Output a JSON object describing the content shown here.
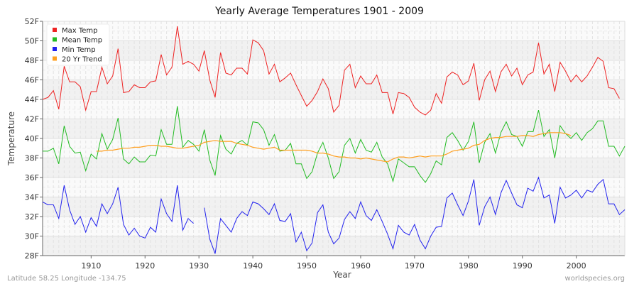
{
  "chart_data": {
    "type": "line",
    "title": "Yearly Average Temperatures 1901 - 2009",
    "xlabel": "Year",
    "ylabel": "Temperature",
    "xlim": [
      1901,
      2009
    ],
    "ylim": [
      28,
      52
    ],
    "x_ticks": [
      1910,
      1920,
      1930,
      1940,
      1950,
      1960,
      1970,
      1980,
      1990,
      2000
    ],
    "y_ticks": [
      "28F",
      "30F",
      "32F",
      "34F",
      "36F",
      "38F",
      "40F",
      "42F",
      "44F",
      "46F",
      "48F",
      "50F",
      "52F"
    ],
    "grid": true,
    "legend_position": "top-left",
    "series": [
      {
        "name": "Max Temp",
        "color": "#ee2222",
        "start_year": 1901,
        "values": [
          44.0,
          44.2,
          44.9,
          43.0,
          47.4,
          45.8,
          45.8,
          45.3,
          42.9,
          44.8,
          44.8,
          47.3,
          45.6,
          46.4,
          49.2,
          44.7,
          44.8,
          45.5,
          45.2,
          45.2,
          45.8,
          45.9,
          48.6,
          46.5,
          47.3,
          51.5,
          47.6,
          47.9,
          47.6,
          46.9,
          49.0,
          46.0,
          44.2,
          48.8,
          46.7,
          46.5,
          47.2,
          47.2,
          46.6,
          50.1,
          49.8,
          49.0,
          46.6,
          47.6,
          45.8,
          46.2,
          46.7,
          45.5,
          44.4,
          43.3,
          43.9,
          44.8,
          46.1,
          45.1,
          42.7,
          43.4,
          47.0,
          47.6,
          45.2,
          46.4,
          45.6,
          45.6,
          46.5,
          44.7,
          44.7,
          42.5,
          44.7,
          44.6,
          44.2,
          43.2,
          42.7,
          42.4,
          42.9,
          44.6,
          43.6,
          46.3,
          46.8,
          46.5,
          45.5,
          45.9,
          47.7,
          43.9,
          46.0,
          46.9,
          44.8,
          46.8,
          47.6,
          46.4,
          47.2,
          45.5,
          46.5,
          46.8,
          49.8,
          46.6,
          47.6,
          44.8,
          47.8,
          46.9,
          45.8,
          46.5,
          45.8,
          46.4,
          47.3,
          48.3,
          47.9,
          45.2,
          45.1,
          44.1,
          null
        ]
      },
      {
        "name": "Mean Temp",
        "color": "#22bb22",
        "start_year": 1901,
        "values": [
          38.7,
          38.7,
          39.0,
          37.4,
          41.3,
          39.2,
          38.5,
          38.6,
          36.7,
          38.4,
          37.9,
          40.5,
          38.9,
          39.9,
          42.1,
          37.9,
          37.4,
          38.1,
          37.6,
          37.6,
          38.3,
          38.2,
          40.9,
          39.4,
          39.4,
          43.3,
          39.1,
          39.8,
          39.4,
          38.7,
          40.9,
          37.8,
          36.2,
          40.3,
          38.9,
          38.4,
          39.5,
          39.8,
          39.3,
          41.7,
          41.6,
          40.9,
          39.3,
          40.4,
          38.7,
          38.8,
          39.5,
          37.4,
          37.4,
          35.9,
          36.6,
          38.5,
          39.6,
          38.0,
          35.9,
          36.6,
          39.3,
          40.0,
          38.5,
          39.9,
          38.8,
          38.6,
          39.6,
          38.1,
          37.4,
          35.6,
          37.9,
          37.5,
          37.1,
          37.1,
          36.2,
          35.5,
          36.4,
          37.7,
          37.3,
          40.1,
          40.6,
          39.8,
          38.8,
          39.7,
          41.7,
          37.5,
          39.6,
          40.5,
          38.5,
          40.6,
          41.7,
          40.4,
          40.2,
          39.2,
          40.7,
          40.7,
          42.9,
          40.2,
          40.9,
          38.0,
          41.3,
          40.5,
          40.0,
          40.6,
          39.8,
          40.6,
          41.0,
          41.8,
          41.8,
          39.2,
          39.2,
          38.2,
          39.2
        ]
      },
      {
        "name": "Min Temp",
        "color": "#2222ee",
        "start_year": 1901,
        "values": [
          33.5,
          33.2,
          33.2,
          31.8,
          35.2,
          32.7,
          31.2,
          32.0,
          30.4,
          31.9,
          31.0,
          33.3,
          32.3,
          33.3,
          35.0,
          31.2,
          30.1,
          30.8,
          30.0,
          29.8,
          30.9,
          30.4,
          33.8,
          32.3,
          31.5,
          35.2,
          30.6,
          31.8,
          31.3,
          null,
          32.9,
          29.7,
          28.2,
          31.8,
          31.1,
          30.4,
          31.8,
          32.5,
          32.1,
          33.5,
          33.3,
          32.8,
          32.2,
          33.3,
          31.6,
          31.5,
          32.3,
          29.4,
          30.4,
          28.5,
          29.3,
          32.4,
          33.2,
          30.4,
          29.2,
          29.8,
          31.7,
          32.5,
          31.8,
          33.5,
          32.1,
          31.6,
          32.7,
          31.5,
          30.2,
          28.7,
          31.1,
          30.4,
          30.1,
          31.2,
          29.6,
          28.7,
          30.0,
          30.9,
          31.0,
          33.9,
          34.4,
          33.2,
          32.1,
          33.6,
          35.8,
          31.1,
          33.0,
          34.0,
          32.2,
          34.4,
          35.7,
          34.4,
          33.2,
          32.9,
          34.9,
          34.6,
          36.0,
          33.9,
          34.2,
          31.3,
          35.0,
          33.9,
          34.2,
          34.7,
          33.9,
          34.7,
          34.5,
          35.3,
          35.8,
          33.3,
          33.3,
          32.2,
          32.7
        ]
      },
      {
        "name": "20 Yr Trend",
        "color": "#ffa020",
        "start_year": 1911,
        "values": [
          38.7,
          38.7,
          38.8,
          38.8,
          38.9,
          39.0,
          39.0,
          39.1,
          39.1,
          39.2,
          39.3,
          39.3,
          39.2,
          39.2,
          39.1,
          39.0,
          39.0,
          39.1,
          39.2,
          39.3,
          39.6,
          39.7,
          39.8,
          39.7,
          39.7,
          39.7,
          39.5,
          39.4,
          39.3,
          39.1,
          39.0,
          38.9,
          39.0,
          39.1,
          38.8,
          38.8,
          38.8,
          38.8,
          38.8,
          38.8,
          38.7,
          38.5,
          38.5,
          38.4,
          38.2,
          38.1,
          38.1,
          38.0,
          38.0,
          37.9,
          38.0,
          37.9,
          37.8,
          37.7,
          37.6,
          37.9,
          38.1,
          38.1,
          38.0,
          38.1,
          38.2,
          38.1,
          38.2,
          38.2,
          38.2,
          38.4,
          38.7,
          38.8,
          38.9,
          39.0,
          39.3,
          39.4,
          39.8,
          40.0,
          40.1,
          40.1,
          40.2,
          40.2,
          40.2,
          40.3,
          40.3,
          40.2,
          40.4,
          40.5,
          40.6,
          40.6,
          40.6,
          40.5,
          40.3
        ]
      }
    ]
  },
  "footer": {
    "location": "Latitude 58.25 Longitude -134.75",
    "source": "worldspecies.org"
  }
}
